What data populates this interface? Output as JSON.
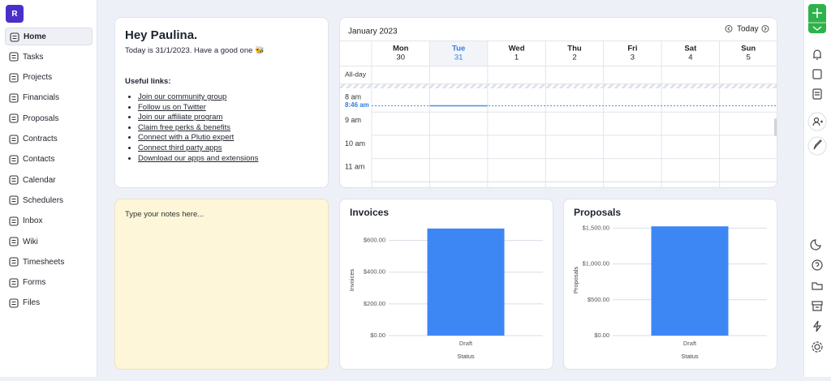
{
  "sidebar": {
    "logo": "R",
    "nav": [
      "Home",
      "Tasks",
      "Projects",
      "Financials",
      "Proposals",
      "Contracts",
      "Contacts",
      "Calendar",
      "Schedulers",
      "Inbox",
      "Wiki",
      "Timesheets",
      "Forms",
      "Files"
    ]
  },
  "greeting": {
    "title": "Hey Paulina.",
    "subtitle": "Today is 31/1/2023. Have a good one 🐝",
    "links_heading": "Useful links:",
    "links": [
      "Join our community group",
      "Follow us on Twitter",
      "Join our affiliate program",
      "Claim free perks & benefits",
      "Connect with a Plutio expert",
      "Connect third party apps",
      "Download our apps and extensions"
    ]
  },
  "calendar": {
    "month": "January  2023",
    "today_button": "Today",
    "days": [
      {
        "name": "Mon",
        "date": "30"
      },
      {
        "name": "Tue",
        "date": "31",
        "today": true
      },
      {
        "name": "Wed",
        "date": "1"
      },
      {
        "name": "Thu",
        "date": "2"
      },
      {
        "name": "Fri",
        "date": "3"
      },
      {
        "name": "Sat",
        "date": "4"
      },
      {
        "name": "Sun",
        "date": "5"
      }
    ],
    "all_day": "All-day",
    "times": [
      "8 am",
      "9 am",
      "10 am",
      "11 am"
    ],
    "now": "8:46 am"
  },
  "notes": {
    "placeholder": "Type your notes here..."
  },
  "chart_data": [
    {
      "type": "bar",
      "title": "Invoices",
      "y_label": "Invoices",
      "x_label": "Status",
      "categories": [
        "Draft"
      ],
      "values": [
        675
      ],
      "color": "#3d87f5",
      "grid": true,
      "ylim": [
        0,
        700
      ],
      "yticks": [
        {
          "value": 0,
          "label": "$0.00"
        },
        {
          "value": 200,
          "label": "$200.00"
        },
        {
          "value": 400,
          "label": "$400.00"
        },
        {
          "value": 600,
          "label": "$600.00"
        }
      ]
    },
    {
      "type": "bar",
      "title": "Proposals",
      "y_label": "Proposals",
      "x_label": "Status",
      "categories": [
        "Draft"
      ],
      "values": [
        1525
      ],
      "color": "#3d87f5",
      "grid": true,
      "ylim": [
        0,
        1550
      ],
      "yticks": [
        {
          "value": 0,
          "label": "$0.00"
        },
        {
          "value": 500,
          "label": "$500.00"
        },
        {
          "value": 1000,
          "label": "$1,000.00"
        },
        {
          "value": 1500,
          "label": "$1,500.00"
        }
      ]
    }
  ]
}
